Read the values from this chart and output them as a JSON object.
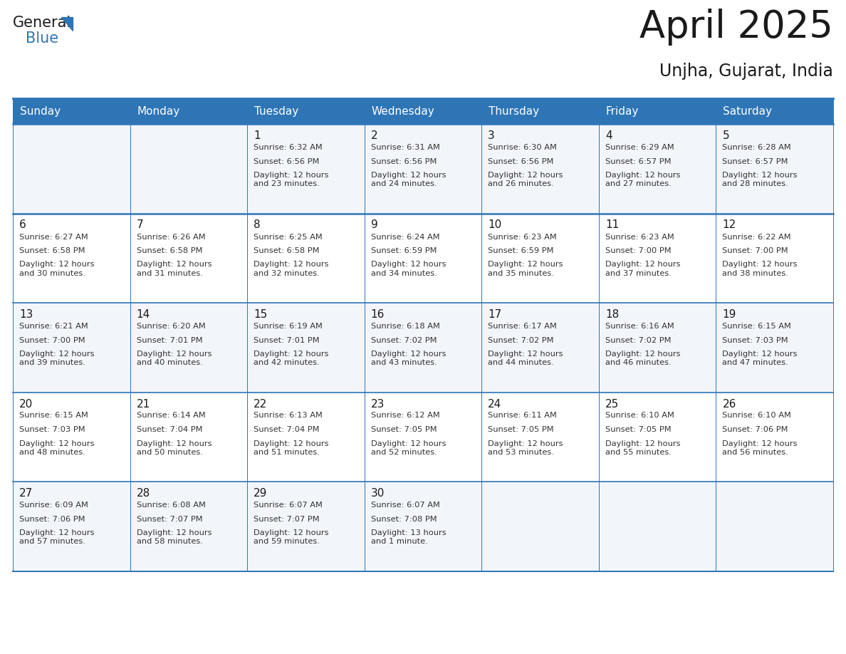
{
  "title": "April 2025",
  "subtitle": "Unjha, Gujarat, India",
  "header_bg": "#2E75B6",
  "header_text_color": "#FFFFFF",
  "cell_bg_even": "#F2F5FA",
  "cell_bg_odd": "#FFFFFF",
  "border_color": "#2E75B6",
  "day_headers": [
    "Sunday",
    "Monday",
    "Tuesday",
    "Wednesday",
    "Thursday",
    "Friday",
    "Saturday"
  ],
  "title_color": "#1a1a1a",
  "subtitle_color": "#1a1a1a",
  "cell_text_color": "#333333",
  "day_num_color": "#1a1a1a",
  "weeks": [
    [
      {
        "day": "",
        "sunrise": "",
        "sunset": "",
        "daylight": ""
      },
      {
        "day": "",
        "sunrise": "",
        "sunset": "",
        "daylight": ""
      },
      {
        "day": "1",
        "sunrise": "6:32 AM",
        "sunset": "6:56 PM",
        "daylight": "12 hours\nand 23 minutes."
      },
      {
        "day": "2",
        "sunrise": "6:31 AM",
        "sunset": "6:56 PM",
        "daylight": "12 hours\nand 24 minutes."
      },
      {
        "day": "3",
        "sunrise": "6:30 AM",
        "sunset": "6:56 PM",
        "daylight": "12 hours\nand 26 minutes."
      },
      {
        "day": "4",
        "sunrise": "6:29 AM",
        "sunset": "6:57 PM",
        "daylight": "12 hours\nand 27 minutes."
      },
      {
        "day": "5",
        "sunrise": "6:28 AM",
        "sunset": "6:57 PM",
        "daylight": "12 hours\nand 28 minutes."
      }
    ],
    [
      {
        "day": "6",
        "sunrise": "6:27 AM",
        "sunset": "6:58 PM",
        "daylight": "12 hours\nand 30 minutes."
      },
      {
        "day": "7",
        "sunrise": "6:26 AM",
        "sunset": "6:58 PM",
        "daylight": "12 hours\nand 31 minutes."
      },
      {
        "day": "8",
        "sunrise": "6:25 AM",
        "sunset": "6:58 PM",
        "daylight": "12 hours\nand 32 minutes."
      },
      {
        "day": "9",
        "sunrise": "6:24 AM",
        "sunset": "6:59 PM",
        "daylight": "12 hours\nand 34 minutes."
      },
      {
        "day": "10",
        "sunrise": "6:23 AM",
        "sunset": "6:59 PM",
        "daylight": "12 hours\nand 35 minutes."
      },
      {
        "day": "11",
        "sunrise": "6:23 AM",
        "sunset": "7:00 PM",
        "daylight": "12 hours\nand 37 minutes."
      },
      {
        "day": "12",
        "sunrise": "6:22 AM",
        "sunset": "7:00 PM",
        "daylight": "12 hours\nand 38 minutes."
      }
    ],
    [
      {
        "day": "13",
        "sunrise": "6:21 AM",
        "sunset": "7:00 PM",
        "daylight": "12 hours\nand 39 minutes."
      },
      {
        "day": "14",
        "sunrise": "6:20 AM",
        "sunset": "7:01 PM",
        "daylight": "12 hours\nand 40 minutes."
      },
      {
        "day": "15",
        "sunrise": "6:19 AM",
        "sunset": "7:01 PM",
        "daylight": "12 hours\nand 42 minutes."
      },
      {
        "day": "16",
        "sunrise": "6:18 AM",
        "sunset": "7:02 PM",
        "daylight": "12 hours\nand 43 minutes."
      },
      {
        "day": "17",
        "sunrise": "6:17 AM",
        "sunset": "7:02 PM",
        "daylight": "12 hours\nand 44 minutes."
      },
      {
        "day": "18",
        "sunrise": "6:16 AM",
        "sunset": "7:02 PM",
        "daylight": "12 hours\nand 46 minutes."
      },
      {
        "day": "19",
        "sunrise": "6:15 AM",
        "sunset": "7:03 PM",
        "daylight": "12 hours\nand 47 minutes."
      }
    ],
    [
      {
        "day": "20",
        "sunrise": "6:15 AM",
        "sunset": "7:03 PM",
        "daylight": "12 hours\nand 48 minutes."
      },
      {
        "day": "21",
        "sunrise": "6:14 AM",
        "sunset": "7:04 PM",
        "daylight": "12 hours\nand 50 minutes."
      },
      {
        "day": "22",
        "sunrise": "6:13 AM",
        "sunset": "7:04 PM",
        "daylight": "12 hours\nand 51 minutes."
      },
      {
        "day": "23",
        "sunrise": "6:12 AM",
        "sunset": "7:05 PM",
        "daylight": "12 hours\nand 52 minutes."
      },
      {
        "day": "24",
        "sunrise": "6:11 AM",
        "sunset": "7:05 PM",
        "daylight": "12 hours\nand 53 minutes."
      },
      {
        "day": "25",
        "sunrise": "6:10 AM",
        "sunset": "7:05 PM",
        "daylight": "12 hours\nand 55 minutes."
      },
      {
        "day": "26",
        "sunrise": "6:10 AM",
        "sunset": "7:06 PM",
        "daylight": "12 hours\nand 56 minutes."
      }
    ],
    [
      {
        "day": "27",
        "sunrise": "6:09 AM",
        "sunset": "7:06 PM",
        "daylight": "12 hours\nand 57 minutes."
      },
      {
        "day": "28",
        "sunrise": "6:08 AM",
        "sunset": "7:07 PM",
        "daylight": "12 hours\nand 58 minutes."
      },
      {
        "day": "29",
        "sunrise": "6:07 AM",
        "sunset": "7:07 PM",
        "daylight": "12 hours\nand 59 minutes."
      },
      {
        "day": "30",
        "sunrise": "6:07 AM",
        "sunset": "7:08 PM",
        "daylight": "13 hours\nand 1 minute."
      },
      {
        "day": "",
        "sunrise": "",
        "sunset": "",
        "daylight": ""
      },
      {
        "day": "",
        "sunrise": "",
        "sunset": "",
        "daylight": ""
      },
      {
        "day": "",
        "sunrise": "",
        "sunset": "",
        "daylight": ""
      }
    ]
  ]
}
